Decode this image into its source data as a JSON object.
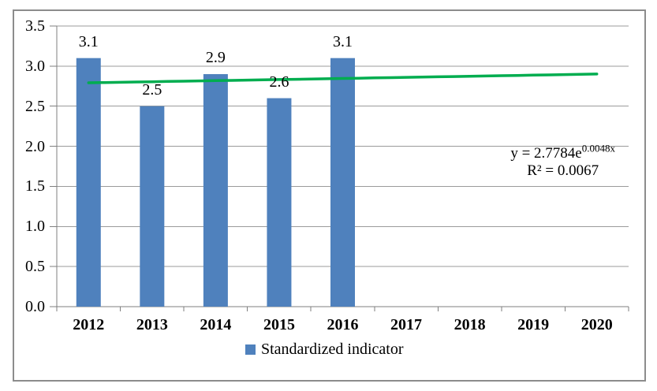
{
  "chart_data": {
    "type": "bar",
    "title": "",
    "categories": [
      "2012",
      "2013",
      "2014",
      "2015",
      "2016",
      "2017",
      "2018",
      "2019",
      "2020"
    ],
    "series": [
      {
        "name": "Standardized indicator",
        "values": [
          3.1,
          2.5,
          2.9,
          2.6,
          3.1,
          null,
          null,
          null,
          null
        ]
      }
    ],
    "bar_value_labels": [
      "3.1",
      "2.5",
      "2.9",
      "2.6",
      "3.1"
    ],
    "xlabel": "",
    "ylabel": "",
    "ylim": [
      0,
      3.5
    ],
    "y_tick_step": 0.5,
    "y_tick_labels": [
      "0.0",
      "0.5",
      "1.0",
      "1.5",
      "2.0",
      "2.5",
      "3.0",
      "3.5"
    ],
    "grid": "horizontal",
    "legend_position": "bottom-center",
    "trendline": {
      "type": "exponential",
      "a": 2.7784,
      "b": 0.0048,
      "x_start": 1,
      "x_end": 9,
      "equation_base": "y = 2.7784e",
      "equation_exponent": "0.0048x",
      "r2_label": "R² = 0.0067"
    },
    "colors": {
      "bar": "#4f81bd",
      "trendline": "#00ad4f",
      "gridline": "#9b9b9b",
      "axis": "#7f7f7f",
      "border": "#8c8c8c",
      "text": "#000000"
    }
  },
  "legend": {
    "label": "Standardized indicator"
  }
}
